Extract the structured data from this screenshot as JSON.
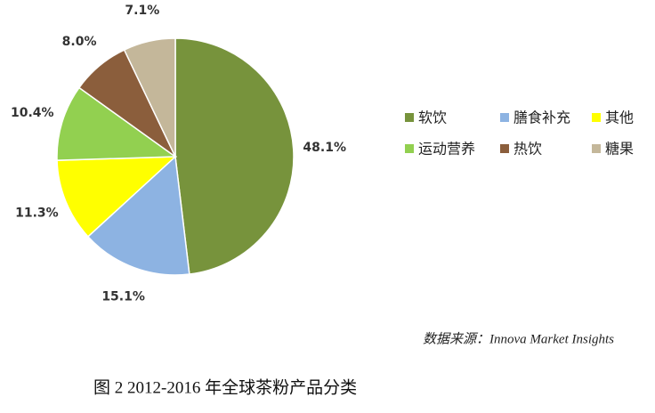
{
  "chart_data": {
    "type": "pie",
    "categories": [
      "软饮",
      "膳食补充",
      "其他",
      "运动营养",
      "热饮",
      "糖果"
    ],
    "values": [
      48.1,
      15.1,
      11.3,
      10.4,
      8.0,
      7.1
    ],
    "value_labels": [
      "48.1%",
      "15.1%",
      "11.3%",
      "10.4%",
      "8.0%",
      "7.1%"
    ],
    "colors": [
      "#77933c",
      "#8db3e2",
      "#ffff00",
      "#92d050",
      "#8b5e3c",
      "#c4b79a"
    ],
    "legend": "right",
    "source": "数据来源：Innova Market Insights",
    "caption": "图 2 2012-2016 年全球茶粉产品分类"
  }
}
